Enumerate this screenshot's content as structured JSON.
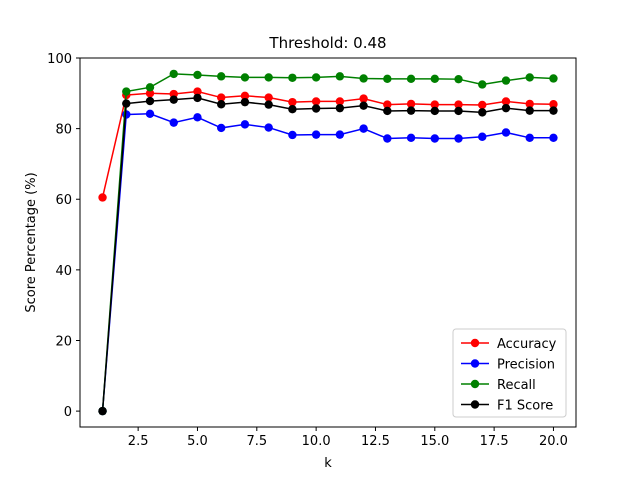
{
  "chart_data": {
    "type": "line",
    "title": "Threshold: 0.48",
    "xlabel": "k",
    "ylabel": "Score Percentage (%)",
    "xlim": [
      0.05,
      20.95
    ],
    "ylim": [
      -4.5,
      100
    ],
    "x_ticks": [
      2.5,
      5.0,
      7.5,
      10.0,
      12.5,
      15.0,
      17.5,
      20.0
    ],
    "x_tick_labels": [
      "2.5",
      "5.0",
      "7.5",
      "10.0",
      "12.5",
      "15.0",
      "17.5",
      "20.0"
    ],
    "y_ticks": [
      0,
      20,
      40,
      60,
      80,
      100
    ],
    "y_tick_labels": [
      "0",
      "20",
      "40",
      "60",
      "80",
      "100"
    ],
    "grid": false,
    "legend_position": "lower-right",
    "x": [
      1,
      2,
      3,
      4,
      5,
      6,
      7,
      8,
      9,
      10,
      11,
      12,
      13,
      14,
      15,
      16,
      17,
      18,
      19,
      20
    ],
    "series": [
      {
        "name": "Accuracy",
        "color": "#ff0000",
        "values": [
          60.5,
          89.5,
          90.0,
          89.8,
          90.5,
          88.8,
          89.3,
          88.8,
          87.5,
          87.7,
          87.7,
          88.5,
          86.8,
          87.0,
          86.8,
          86.8,
          86.7,
          87.7,
          87.0,
          86.9
        ]
      },
      {
        "name": "Precision",
        "color": "#0000ff",
        "values": [
          0.0,
          84.0,
          84.2,
          81.7,
          83.2,
          80.2,
          81.2,
          80.3,
          78.2,
          78.3,
          78.3,
          80.0,
          77.2,
          77.4,
          77.2,
          77.2,
          77.7,
          78.9,
          77.4,
          77.4
        ]
      },
      {
        "name": "Recall",
        "color": "#008000",
        "values": [
          0.0,
          90.5,
          91.7,
          95.5,
          95.2,
          94.8,
          94.5,
          94.5,
          94.4,
          94.5,
          94.8,
          94.2,
          94.1,
          94.1,
          94.1,
          94.0,
          92.5,
          93.6,
          94.5,
          94.2
        ]
      },
      {
        "name": "F1 Score",
        "color": "#000000",
        "values": [
          0.0,
          87.1,
          87.8,
          88.2,
          88.7,
          86.9,
          87.5,
          86.8,
          85.5,
          85.7,
          85.8,
          86.5,
          85.0,
          85.1,
          85.0,
          85.0,
          84.6,
          85.8,
          85.1,
          85.1
        ]
      }
    ]
  }
}
